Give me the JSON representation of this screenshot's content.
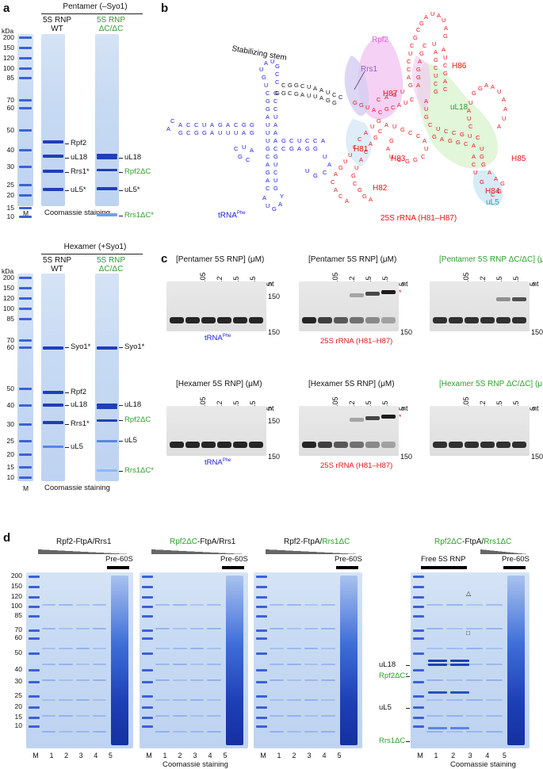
{
  "panels": {
    "a": "a",
    "b": "b",
    "c": "c",
    "d": "d"
  },
  "a": {
    "kda": "kDa",
    "top": {
      "title": "Pentamer (–Syo1)",
      "col1": [
        "5S RNP",
        "WT"
      ],
      "col2": [
        "5S RNP",
        "ΔC/ΔC"
      ],
      "ladder": [
        "200",
        "150",
        "120",
        "100",
        "85",
        "70",
        "60",
        "50",
        "40",
        "30",
        "25",
        "20",
        "15",
        "10"
      ],
      "left_labels": [
        "Rpf2",
        "uL18",
        "Rrs1*",
        "uL5*"
      ],
      "right_labels": [
        "uL18",
        "Rpf2ΔC",
        "uL5*",
        "Rrs1ΔC*"
      ],
      "m": "M",
      "footer": "Coomassie staining"
    },
    "bottom": {
      "title": "Hexamer (+Syo1)",
      "col1": [
        "5S RNP",
        "WT"
      ],
      "col2": [
        "5S RNP",
        "ΔC/ΔC"
      ],
      "ladder": [
        "200",
        "150",
        "120",
        "100",
        "85",
        "70",
        "60",
        "50",
        "40",
        "30",
        "25",
        "20",
        "15",
        "10"
      ],
      "left_labels": [
        "Syo1*",
        "Rpf2",
        "uL18",
        "Rrs1*",
        "uL5"
      ],
      "right_labels": [
        "Syo1*",
        "uL18",
        "Rpf2ΔC",
        "uL5",
        "Rrs1ΔC*"
      ],
      "m": "M",
      "footer": "Coomassie staining"
    }
  },
  "b": {
    "trna_label": "tRNA",
    "trna_sup": "Phe",
    "rrna_label": "25S rRNA (H81–H87)",
    "stabilizing": "Stabilizing stem",
    "proteins": [
      "Rpf2",
      "Rrs1",
      "uL18",
      "uL5"
    ],
    "helices": [
      "H86",
      "H87",
      "H81",
      "H83",
      "H82",
      "H85",
      "H84"
    ]
  },
  "c": {
    "headers_top": [
      "[Pentamer 5S RNP] (μM)",
      "[Pentamer 5S RNP] (μM)",
      "[Pentamer 5S RNP ΔC/ΔC] (μM)"
    ],
    "headers_bottom": [
      "[Hexamer 5S RNP] (μM)",
      "[Hexamer 5S RNP] (μM)",
      "[Hexamer 5S RNP ΔC/ΔC] (μM)"
    ],
    "concs": [
      "0",
      "0.05",
      "0.2",
      "0.5",
      "1.5",
      "5"
    ],
    "nt": "nt",
    "nt150": "150",
    "trna": "tRNA",
    "trna_sup": "Phe",
    "rrna": "25S rRNA (H81–H87)"
  },
  "d": {
    "titles": [
      "Rpf2-FtpA/Rrs1",
      "Rpf2ΔC-FtpA/Rrs1",
      "Rpf2-FtpA/Rrs1ΔC",
      "Rpf2ΔC-FtpA/Rrs1ΔC"
    ],
    "pre60s": "Pre-60S",
    "free5s": "Free 5S RNP",
    "ladder": [
      "200",
      "150",
      "120",
      "100",
      "85",
      "70",
      "60",
      "50",
      "40",
      "30",
      "25",
      "20",
      "15",
      "10"
    ],
    "lanes": [
      "M",
      "1",
      "2",
      "3",
      "4",
      "5"
    ],
    "right_labels": [
      "uL18",
      "Rpf2ΔC*",
      "uL5",
      "Rrs1ΔC"
    ],
    "footer": "Coomassie staining"
  }
}
